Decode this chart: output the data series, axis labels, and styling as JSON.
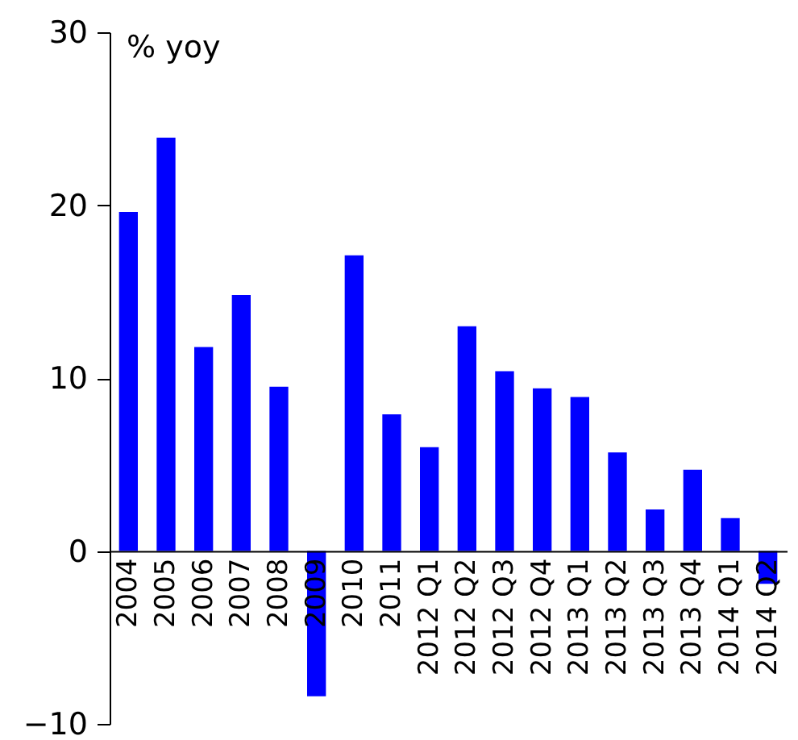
{
  "chart_data": {
    "type": "bar",
    "ylabel": "% yoy",
    "categories": [
      "2004",
      "2005",
      "2006",
      "2007",
      "2008",
      "2009",
      "2010",
      "2011",
      "2012 Q1",
      "2012 Q2",
      "2012 Q3",
      "2012 Q4",
      "2013 Q1",
      "2013 Q2",
      "2013 Q3",
      "2013 Q4",
      "2014 Q1",
      "2014 Q2"
    ],
    "values": [
      19.6,
      23.9,
      11.8,
      14.8,
      9.5,
      -8.4,
      17.1,
      7.9,
      6.0,
      13.0,
      10.4,
      9.4,
      8.9,
      5.7,
      2.4,
      4.7,
      1.9,
      -1.9
    ],
    "color": "#0000ff",
    "ylim": [
      -10,
      30
    ],
    "yticks": [
      -10,
      0,
      10,
      20,
      30
    ],
    "grid": false
  }
}
